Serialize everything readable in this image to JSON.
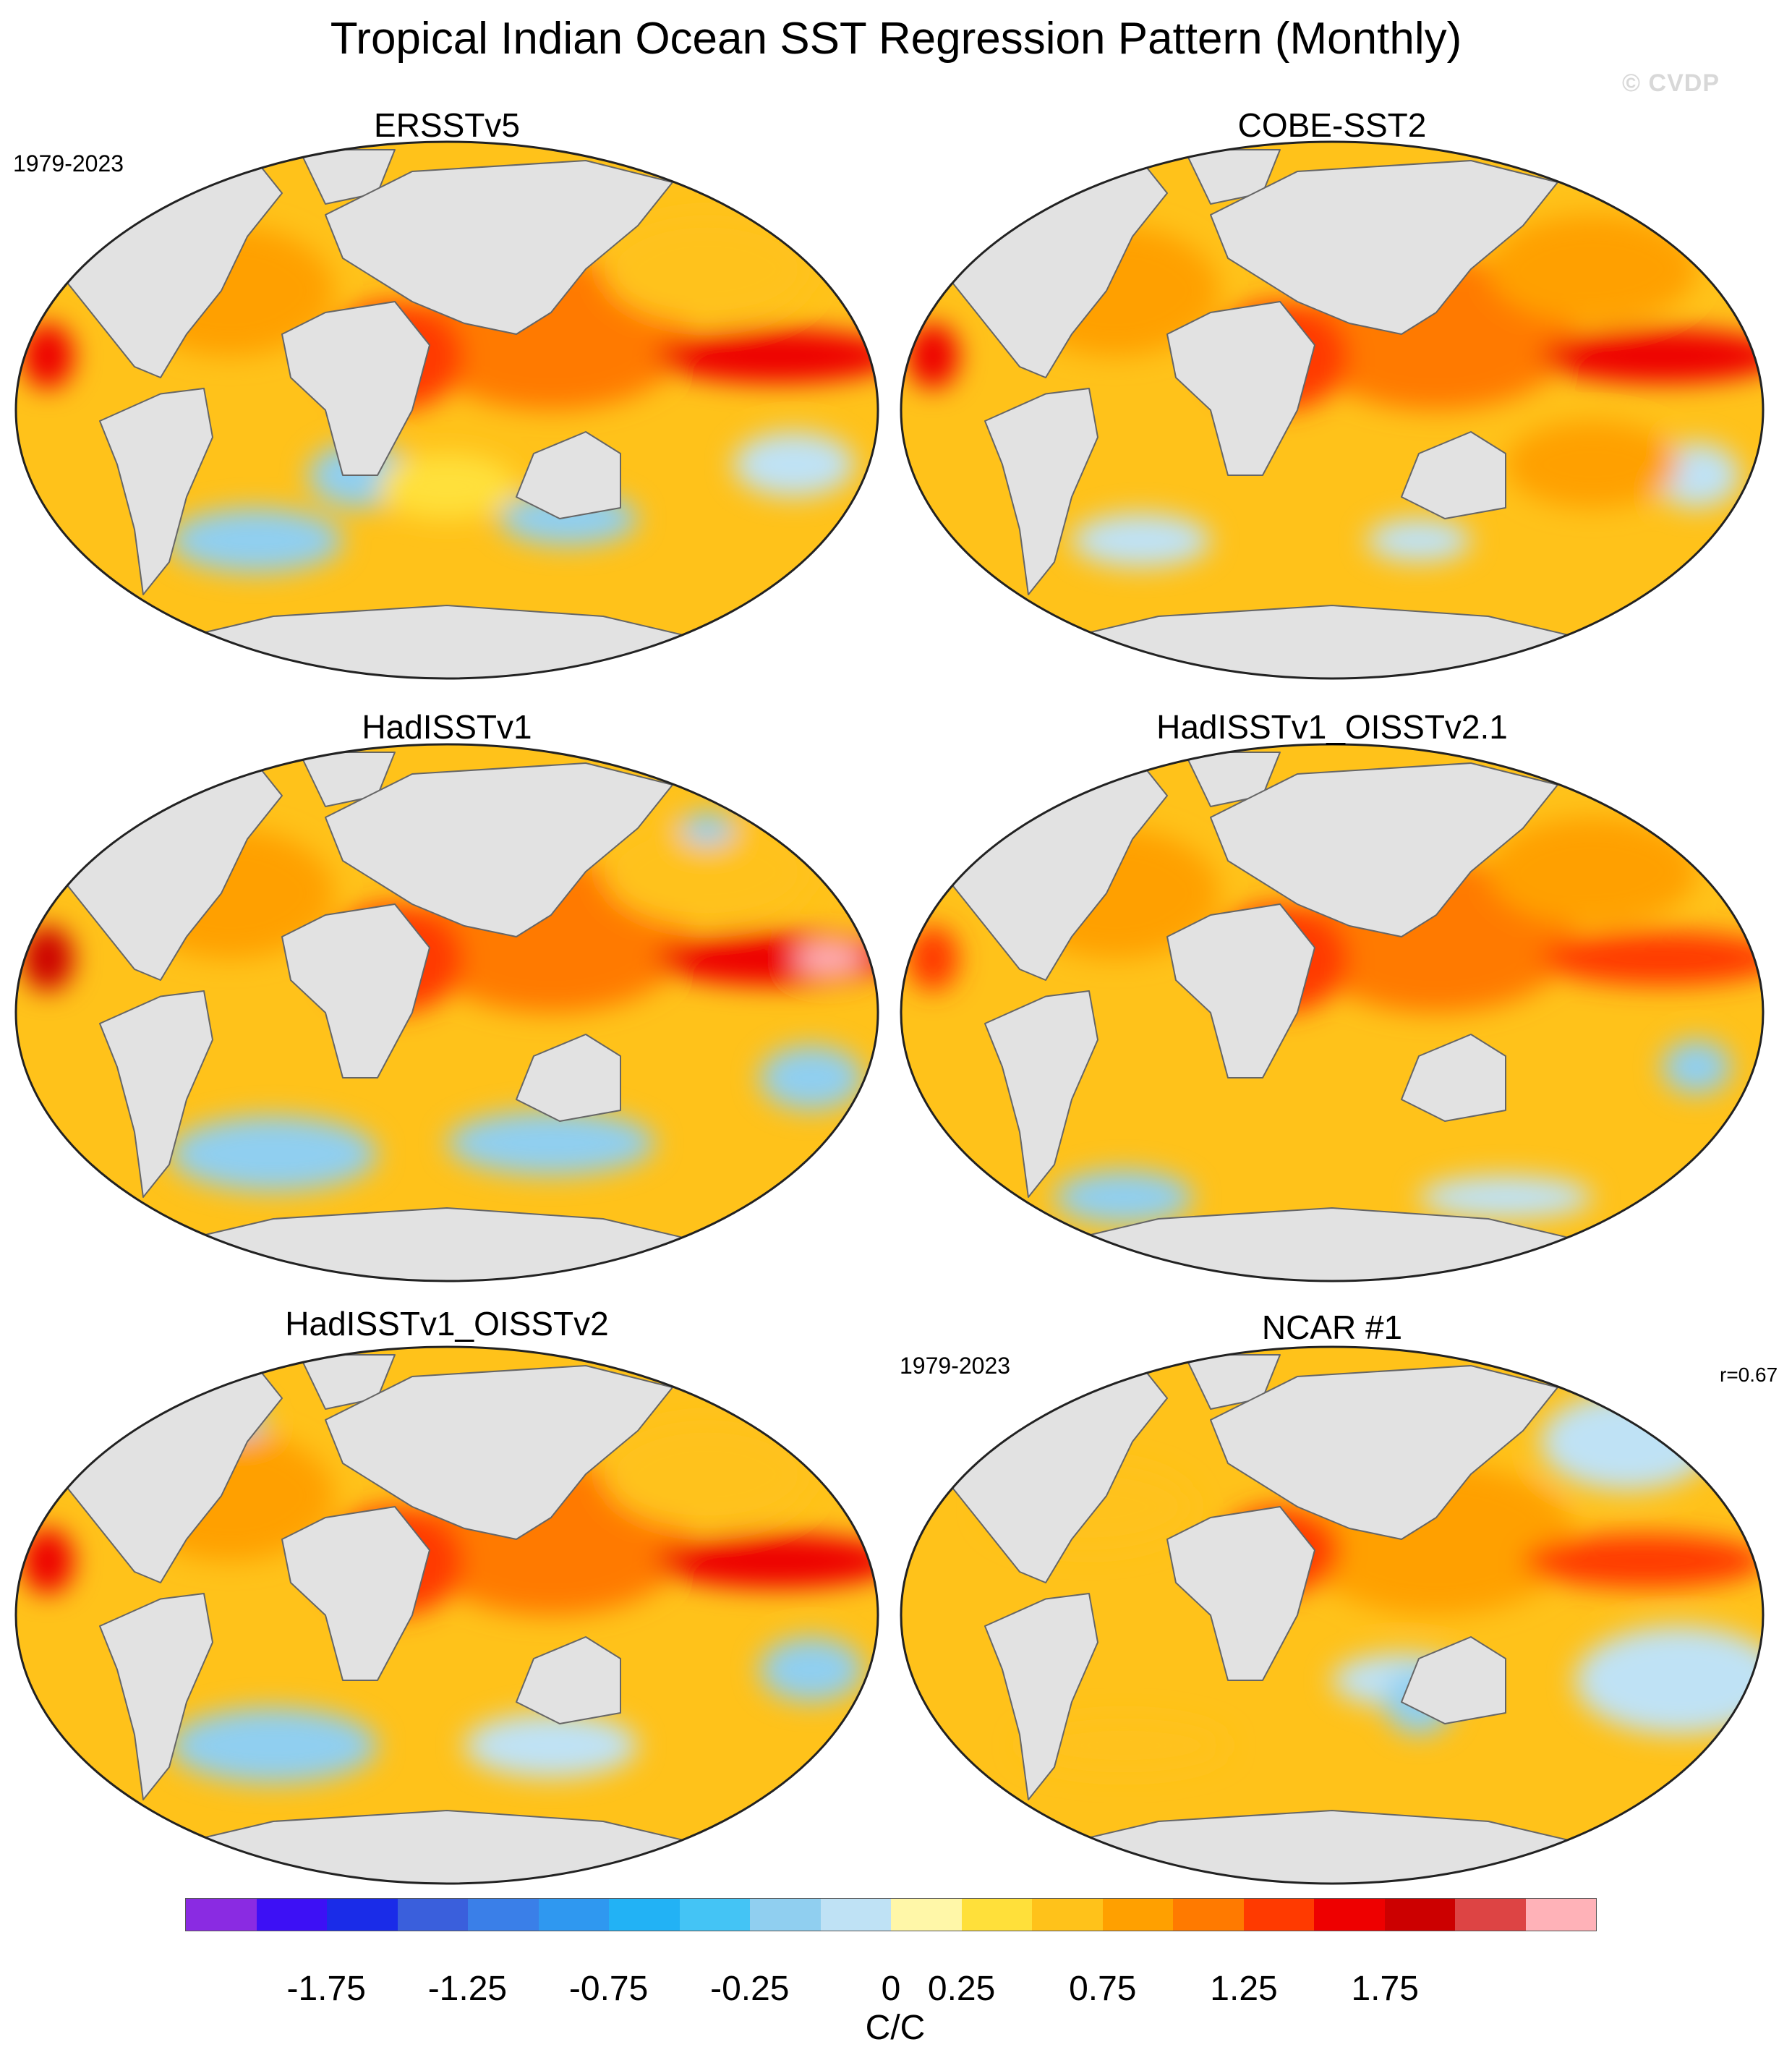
{
  "title": "Tropical Indian Ocean SST Regression Pattern (Monthly)",
  "watermark": "© CVDP",
  "panels": [
    {
      "title": "ERSSTv5",
      "period": "1979-2023",
      "corr": ""
    },
    {
      "title": "COBE-SST2",
      "period": "",
      "corr": ""
    },
    {
      "title": "HadISSTv1",
      "period": "",
      "corr": ""
    },
    {
      "title": "HadISSTv1_OISSTv2.1",
      "period": "",
      "corr": ""
    },
    {
      "title": "HadISSTv1_OISSTv2",
      "period": "",
      "corr": ""
    },
    {
      "title": "NCAR #1",
      "period": "1979-2023",
      "corr": "r=0.67"
    }
  ],
  "colorbar": {
    "units": "C/C",
    "colors": [
      "#8a2be2",
      "#3d10f5",
      "#1a2ce8",
      "#3a5fdc",
      "#3a7fe8",
      "#2f98f0",
      "#22b2f5",
      "#44c4f5",
      "#90cff0",
      "#bfe2f5",
      "#fff7a8",
      "#ffe03a",
      "#ffc21a",
      "#ffa000",
      "#ff7a00",
      "#ff3a00",
      "#ee0000",
      "#cc0000",
      "#dd4444",
      "#ffb2b8"
    ],
    "tick_labels": [
      "-1.75",
      "-1.25",
      "-0.75",
      "-0.25",
      "0",
      "0.25",
      "0.75",
      "1.25",
      "1.75"
    ]
  }
}
